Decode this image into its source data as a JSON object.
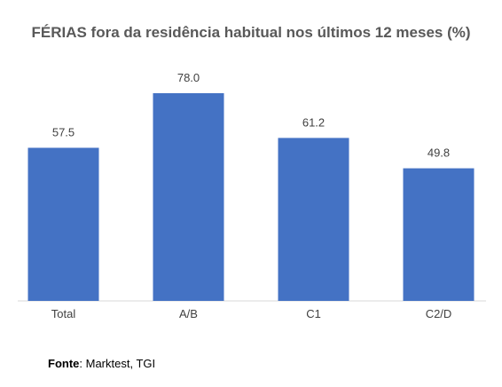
{
  "chart_data": {
    "type": "bar",
    "title": "FÉRIAS fora da residência habitual nos últimos 12 meses (%)",
    "categories": [
      "Total",
      "A/B",
      "C1",
      "C2/D"
    ],
    "values": [
      57.5,
      78.0,
      61.2,
      49.8
    ],
    "value_labels": [
      "57.5",
      "78.0",
      "61.2",
      "49.8"
    ],
    "xlabel": "",
    "ylabel": "",
    "ylim": [
      0,
      80
    ],
    "grid": false,
    "legend": "none",
    "bar_color": "#4472C4"
  },
  "source": {
    "label": "Fonte",
    "text": ": Marktest, TGI"
  }
}
